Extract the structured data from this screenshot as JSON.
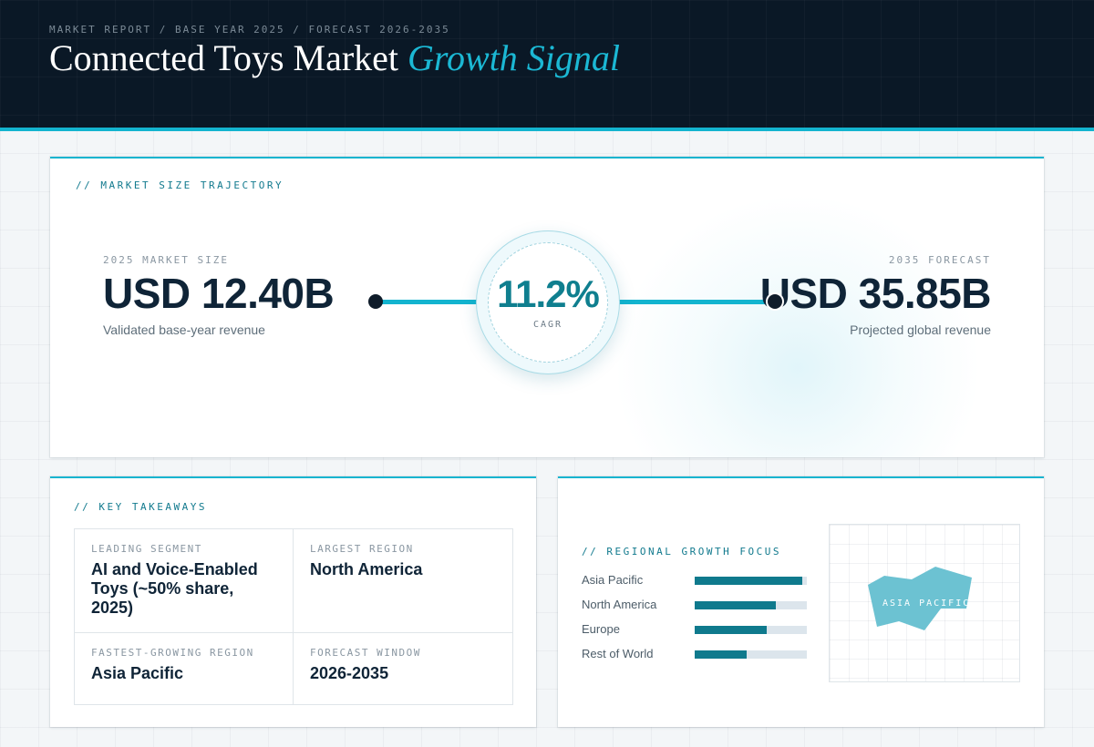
{
  "header": {
    "breadcrumb": "MARKET REPORT / BASE YEAR 2025 / FORECAST 2026-2035",
    "title_main": "Connected Toys Market",
    "title_accent": "Growth Signal"
  },
  "trajectory": {
    "section_label": "// MARKET SIZE TRAJECTORY",
    "base": {
      "kicker": "2025 MARKET SIZE",
      "value": "USD 12.40B",
      "note": "Validated base-year revenue"
    },
    "forecast": {
      "kicker": "2035 FORECAST",
      "value": "USD 35.85B",
      "note": "Projected global revenue"
    },
    "cagr": {
      "value": "11.2%",
      "label": "CAGR"
    }
  },
  "takeaways": {
    "section_label": "// KEY TAKEAWAYS",
    "cells": [
      {
        "key": "LEADING SEGMENT",
        "value": "AI and Voice-Enabled Toys (~50% share, 2025)"
      },
      {
        "key": "LARGEST REGION",
        "value": "North America"
      },
      {
        "key": "FASTEST-GROWING REGION",
        "value": "Asia Pacific"
      },
      {
        "key": "FORECAST WINDOW",
        "value": "2026-2035"
      }
    ]
  },
  "regional": {
    "section_label": "// REGIONAL GROWTH FOCUS",
    "bars": [
      {
        "name": "Asia Pacific",
        "level": 0.96
      },
      {
        "name": "North America",
        "level": 0.72
      },
      {
        "name": "Europe",
        "level": 0.64
      },
      {
        "name": "Rest of World",
        "level": 0.46
      }
    ],
    "map_label": "ASIA PACIFIC"
  },
  "colors": {
    "accent": "#13b4cf",
    "bar_fill": "#0f7a8d",
    "map_fill": "#6cc2d2",
    "header_bg": "#0a1826"
  }
}
